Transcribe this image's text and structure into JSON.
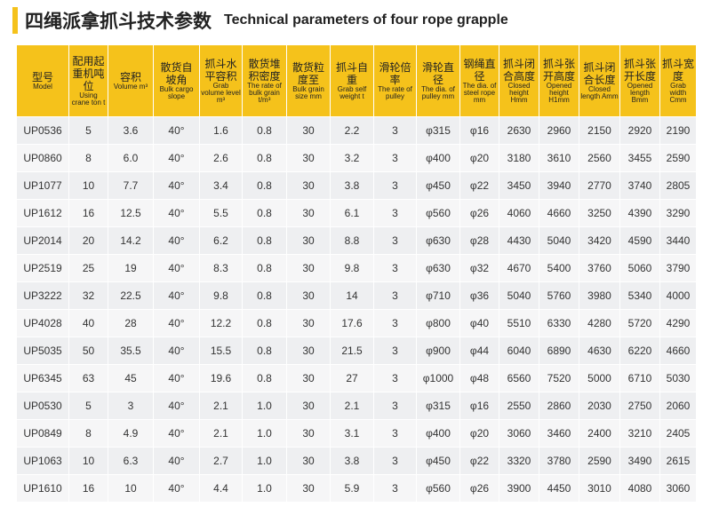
{
  "header": {
    "title_zh": "四绳派拿抓斗技术参数",
    "title_en": "Technical parameters of four rope grapple"
  },
  "table": {
    "headers": [
      {
        "zh": "型号",
        "en": "Model"
      },
      {
        "zh": "配用起重机吨位",
        "en": "Using crane ton t"
      },
      {
        "zh": "容积",
        "en": "Volume m³"
      },
      {
        "zh": "散货自坡角",
        "en": "Bulk cargo slope"
      },
      {
        "zh": "抓斗水平容积",
        "en": "Grab volume level m³"
      },
      {
        "zh": "散货堆积密度",
        "en": "The rate of bulk grain t/m³"
      },
      {
        "zh": "散货粒度至",
        "en": "Bulk grain size mm"
      },
      {
        "zh": "抓斗自重",
        "en": "Grab self weight t"
      },
      {
        "zh": "滑轮倍率",
        "en": "The rate of pulley"
      },
      {
        "zh": "滑轮直径",
        "en": "The dia. of pulley mm"
      },
      {
        "zh": "钢绳直径",
        "en": "The dia. of steel rope mm"
      },
      {
        "zh": "抓斗闭合高度",
        "en": "Closed height Hmm"
      },
      {
        "zh": "抓斗张开高度",
        "en": "Opened height H1mm"
      },
      {
        "zh": "抓斗闭合长度",
        "en": "Closed length Amm"
      },
      {
        "zh": "抓斗张开长度",
        "en": "Opened length Bmm"
      },
      {
        "zh": "抓斗宽度",
        "en": "Grab width Cmm"
      }
    ],
    "rows": [
      [
        "UP0536",
        "5",
        "3.6",
        "40°",
        "1.6",
        "0.8",
        "30",
        "2.2",
        "3",
        "φ315",
        "φ16",
        "2630",
        "2960",
        "2150",
        "2920",
        "2190"
      ],
      [
        "UP0860",
        "8",
        "6.0",
        "40°",
        "2.6",
        "0.8",
        "30",
        "3.2",
        "3",
        "φ400",
        "φ20",
        "3180",
        "3610",
        "2560",
        "3455",
        "2590"
      ],
      [
        "UP1077",
        "10",
        "7.7",
        "40°",
        "3.4",
        "0.8",
        "30",
        "3.8",
        "3",
        "φ450",
        "φ22",
        "3450",
        "3940",
        "2770",
        "3740",
        "2805"
      ],
      [
        "UP1612",
        "16",
        "12.5",
        "40°",
        "5.5",
        "0.8",
        "30",
        "6.1",
        "3",
        "φ560",
        "φ26",
        "4060",
        "4660",
        "3250",
        "4390",
        "3290"
      ],
      [
        "UP2014",
        "20",
        "14.2",
        "40°",
        "6.2",
        "0.8",
        "30",
        "8.8",
        "3",
        "φ630",
        "φ28",
        "4430",
        "5040",
        "3420",
        "4590",
        "3440"
      ],
      [
        "UP2519",
        "25",
        "19",
        "40°",
        "8.3",
        "0.8",
        "30",
        "9.8",
        "3",
        "φ630",
        "φ32",
        "4670",
        "5400",
        "3760",
        "5060",
        "3790"
      ],
      [
        "UP3222",
        "32",
        "22.5",
        "40°",
        "9.8",
        "0.8",
        "30",
        "14",
        "3",
        "φ710",
        "φ36",
        "5040",
        "5760",
        "3980",
        "5340",
        "4000"
      ],
      [
        "UP4028",
        "40",
        "28",
        "40°",
        "12.2",
        "0.8",
        "30",
        "17.6",
        "3",
        "φ800",
        "φ40",
        "5510",
        "6330",
        "4280",
        "5720",
        "4290"
      ],
      [
        "UP5035",
        "50",
        "35.5",
        "40°",
        "15.5",
        "0.8",
        "30",
        "21.5",
        "3",
        "φ900",
        "φ44",
        "6040",
        "6890",
        "4630",
        "6220",
        "4660"
      ],
      [
        "UP6345",
        "63",
        "45",
        "40°",
        "19.6",
        "0.8",
        "30",
        "27",
        "3",
        "φ1000",
        "φ48",
        "6560",
        "7520",
        "5000",
        "6710",
        "5030"
      ],
      [
        "UP0530",
        "5",
        "3",
        "40°",
        "2.1",
        "1.0",
        "30",
        "2.1",
        "3",
        "φ315",
        "φ16",
        "2550",
        "2860",
        "2030",
        "2750",
        "2060"
      ],
      [
        "UP0849",
        "8",
        "4.9",
        "40°",
        "2.1",
        "1.0",
        "30",
        "3.1",
        "3",
        "φ400",
        "φ20",
        "3060",
        "3460",
        "2400",
        "3210",
        "2405"
      ],
      [
        "UP1063",
        "10",
        "6.3",
        "40°",
        "2.7",
        "1.0",
        "30",
        "3.8",
        "3",
        "φ450",
        "φ22",
        "3320",
        "3780",
        "2590",
        "3490",
        "2615"
      ],
      [
        "UP1610",
        "16",
        "10",
        "40°",
        "4.4",
        "1.0",
        "30",
        "5.9",
        "3",
        "φ560",
        "φ26",
        "3900",
        "4450",
        "3010",
        "4080",
        "3060"
      ]
    ]
  }
}
